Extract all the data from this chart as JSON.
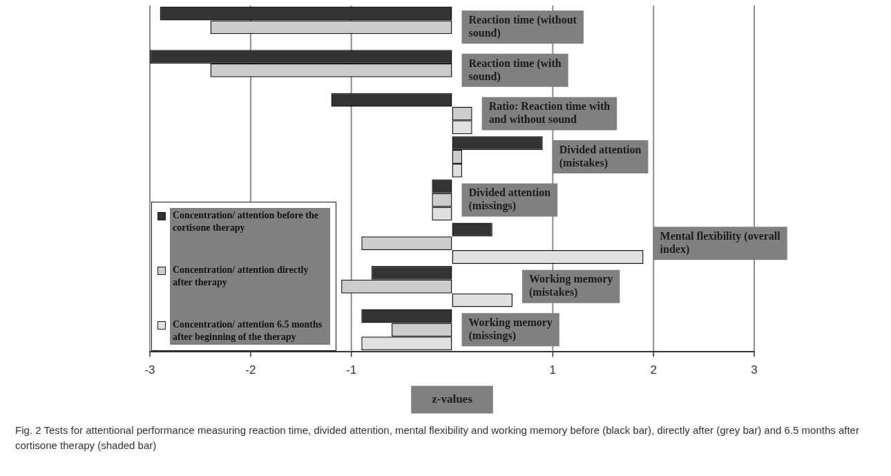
{
  "chart_data": {
    "type": "bar",
    "orientation": "horizontal",
    "xlabel": "z-values",
    "categories": [
      "Reaction time (without sound)",
      "Reaction time (with sound)",
      "Ratio: Reaction time with and without sound",
      "Divided attention (mistakes)",
      "Divided attention (missings)",
      "Mental flexibility (overall index)",
      "Working memory (mistakes)",
      "Working memory (missings)"
    ],
    "series": [
      {
        "name": "Concentration/ attention before the cortisone therapy",
        "color": "#333333",
        "values": [
          -2.9,
          -3.0,
          -1.2,
          0.9,
          -0.2,
          0.4,
          -0.8,
          -0.9
        ]
      },
      {
        "name": "Concentration/ attention directly after therapy",
        "color": "#cccccc",
        "values": [
          -2.4,
          -2.4,
          0.2,
          0.1,
          -0.2,
          -0.9,
          -1.1,
          -0.6
        ]
      },
      {
        "name": "Concentration/ attention 6.5 months after beginning of the therapy",
        "color": "#e0e0e0",
        "values": [
          null,
          null,
          0.2,
          0.1,
          -0.2,
          1.9,
          0.6,
          -0.9
        ]
      }
    ],
    "xlim": [
      -3,
      3
    ],
    "xticks": [
      -3,
      -2,
      -1,
      1,
      2,
      3
    ],
    "grid": "x",
    "legend": "bottom left",
    "tick_labels": "x",
    "annotations": [
      "Fig. 2 Tests for attentional performance measuring reaction time, divided attention, mental flexibility and working memory before (black bar), directly after (grey bar) and 6.5 months after cortisone therapy (shaded bar)"
    ]
  }
}
